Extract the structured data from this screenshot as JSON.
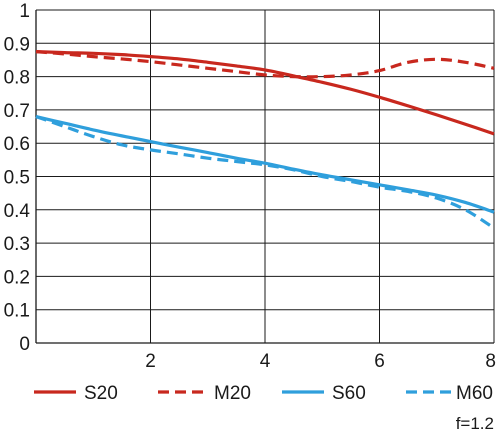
{
  "chart_data": {
    "type": "line",
    "title": "",
    "xlabel": "",
    "ylabel": "",
    "xlim": [
      0,
      8
    ],
    "ylim": [
      0,
      1
    ],
    "grid": true,
    "x_ticks": [
      {
        "value": 0,
        "label": ""
      },
      {
        "value": 2,
        "label": "2"
      },
      {
        "value": 4,
        "label": "4"
      },
      {
        "value": 6,
        "label": "6"
      },
      {
        "value": 8,
        "label": "8"
      }
    ],
    "y_ticks": [
      {
        "value": 0,
        "label": "0"
      },
      {
        "value": 0.1,
        "label": "0.1"
      },
      {
        "value": 0.2,
        "label": "0.2"
      },
      {
        "value": 0.3,
        "label": "0.3"
      },
      {
        "value": 0.4,
        "label": "0.4"
      },
      {
        "value": 0.5,
        "label": "0.5"
      },
      {
        "value": 0.6,
        "label": "0.6"
      },
      {
        "value": 0.7,
        "label": "0.7"
      },
      {
        "value": 0.8,
        "label": "0.8"
      },
      {
        "value": 0.9,
        "label": "0.9"
      },
      {
        "value": 1,
        "label": "1"
      }
    ],
    "legend_position": "bottom",
    "series": [
      {
        "name": "S20",
        "color": "#c8281e",
        "style": "solid",
        "x": [
          0,
          0.5,
          1,
          1.5,
          2,
          2.5,
          3,
          3.5,
          4,
          4.5,
          5,
          5.5,
          6,
          6.5,
          7,
          7.5,
          8
        ],
        "y": [
          0.875,
          0.872,
          0.87,
          0.866,
          0.86,
          0.853,
          0.843,
          0.832,
          0.82,
          0.802,
          0.783,
          0.762,
          0.738,
          0.712,
          0.685,
          0.657,
          0.628
        ]
      },
      {
        "name": "M20",
        "color": "#c8281e",
        "style": "dashed",
        "x": [
          0,
          0.5,
          1,
          1.5,
          2,
          2.5,
          3,
          3.5,
          4,
          4.5,
          5,
          5.5,
          6,
          6.5,
          7,
          7.5,
          8
        ],
        "y": [
          0.875,
          0.868,
          0.86,
          0.853,
          0.845,
          0.835,
          0.825,
          0.815,
          0.805,
          0.8,
          0.8,
          0.805,
          0.818,
          0.843,
          0.852,
          0.843,
          0.825
        ]
      },
      {
        "name": "S60",
        "color": "#2f9fdc",
        "style": "solid",
        "x": [
          0,
          0.5,
          1,
          1.5,
          2,
          2.5,
          3,
          3.5,
          4,
          4.5,
          5,
          5.5,
          6,
          6.5,
          7,
          7.5,
          8
        ],
        "y": [
          0.68,
          0.66,
          0.64,
          0.622,
          0.605,
          0.588,
          0.572,
          0.555,
          0.54,
          0.522,
          0.505,
          0.49,
          0.475,
          0.46,
          0.444,
          0.422,
          0.393
        ]
      },
      {
        "name": "M60",
        "color": "#2f9fdc",
        "style": "dashed",
        "x": [
          0,
          0.5,
          1,
          1.5,
          2,
          2.5,
          3,
          3.5,
          4,
          4.5,
          5,
          5.5,
          6,
          6.5,
          7,
          7.5,
          8
        ],
        "y": [
          0.68,
          0.65,
          0.62,
          0.595,
          0.58,
          0.568,
          0.555,
          0.545,
          0.535,
          0.52,
          0.5,
          0.485,
          0.468,
          0.455,
          0.435,
          0.4,
          0.345
        ]
      }
    ],
    "annotation": "f=1.2"
  }
}
